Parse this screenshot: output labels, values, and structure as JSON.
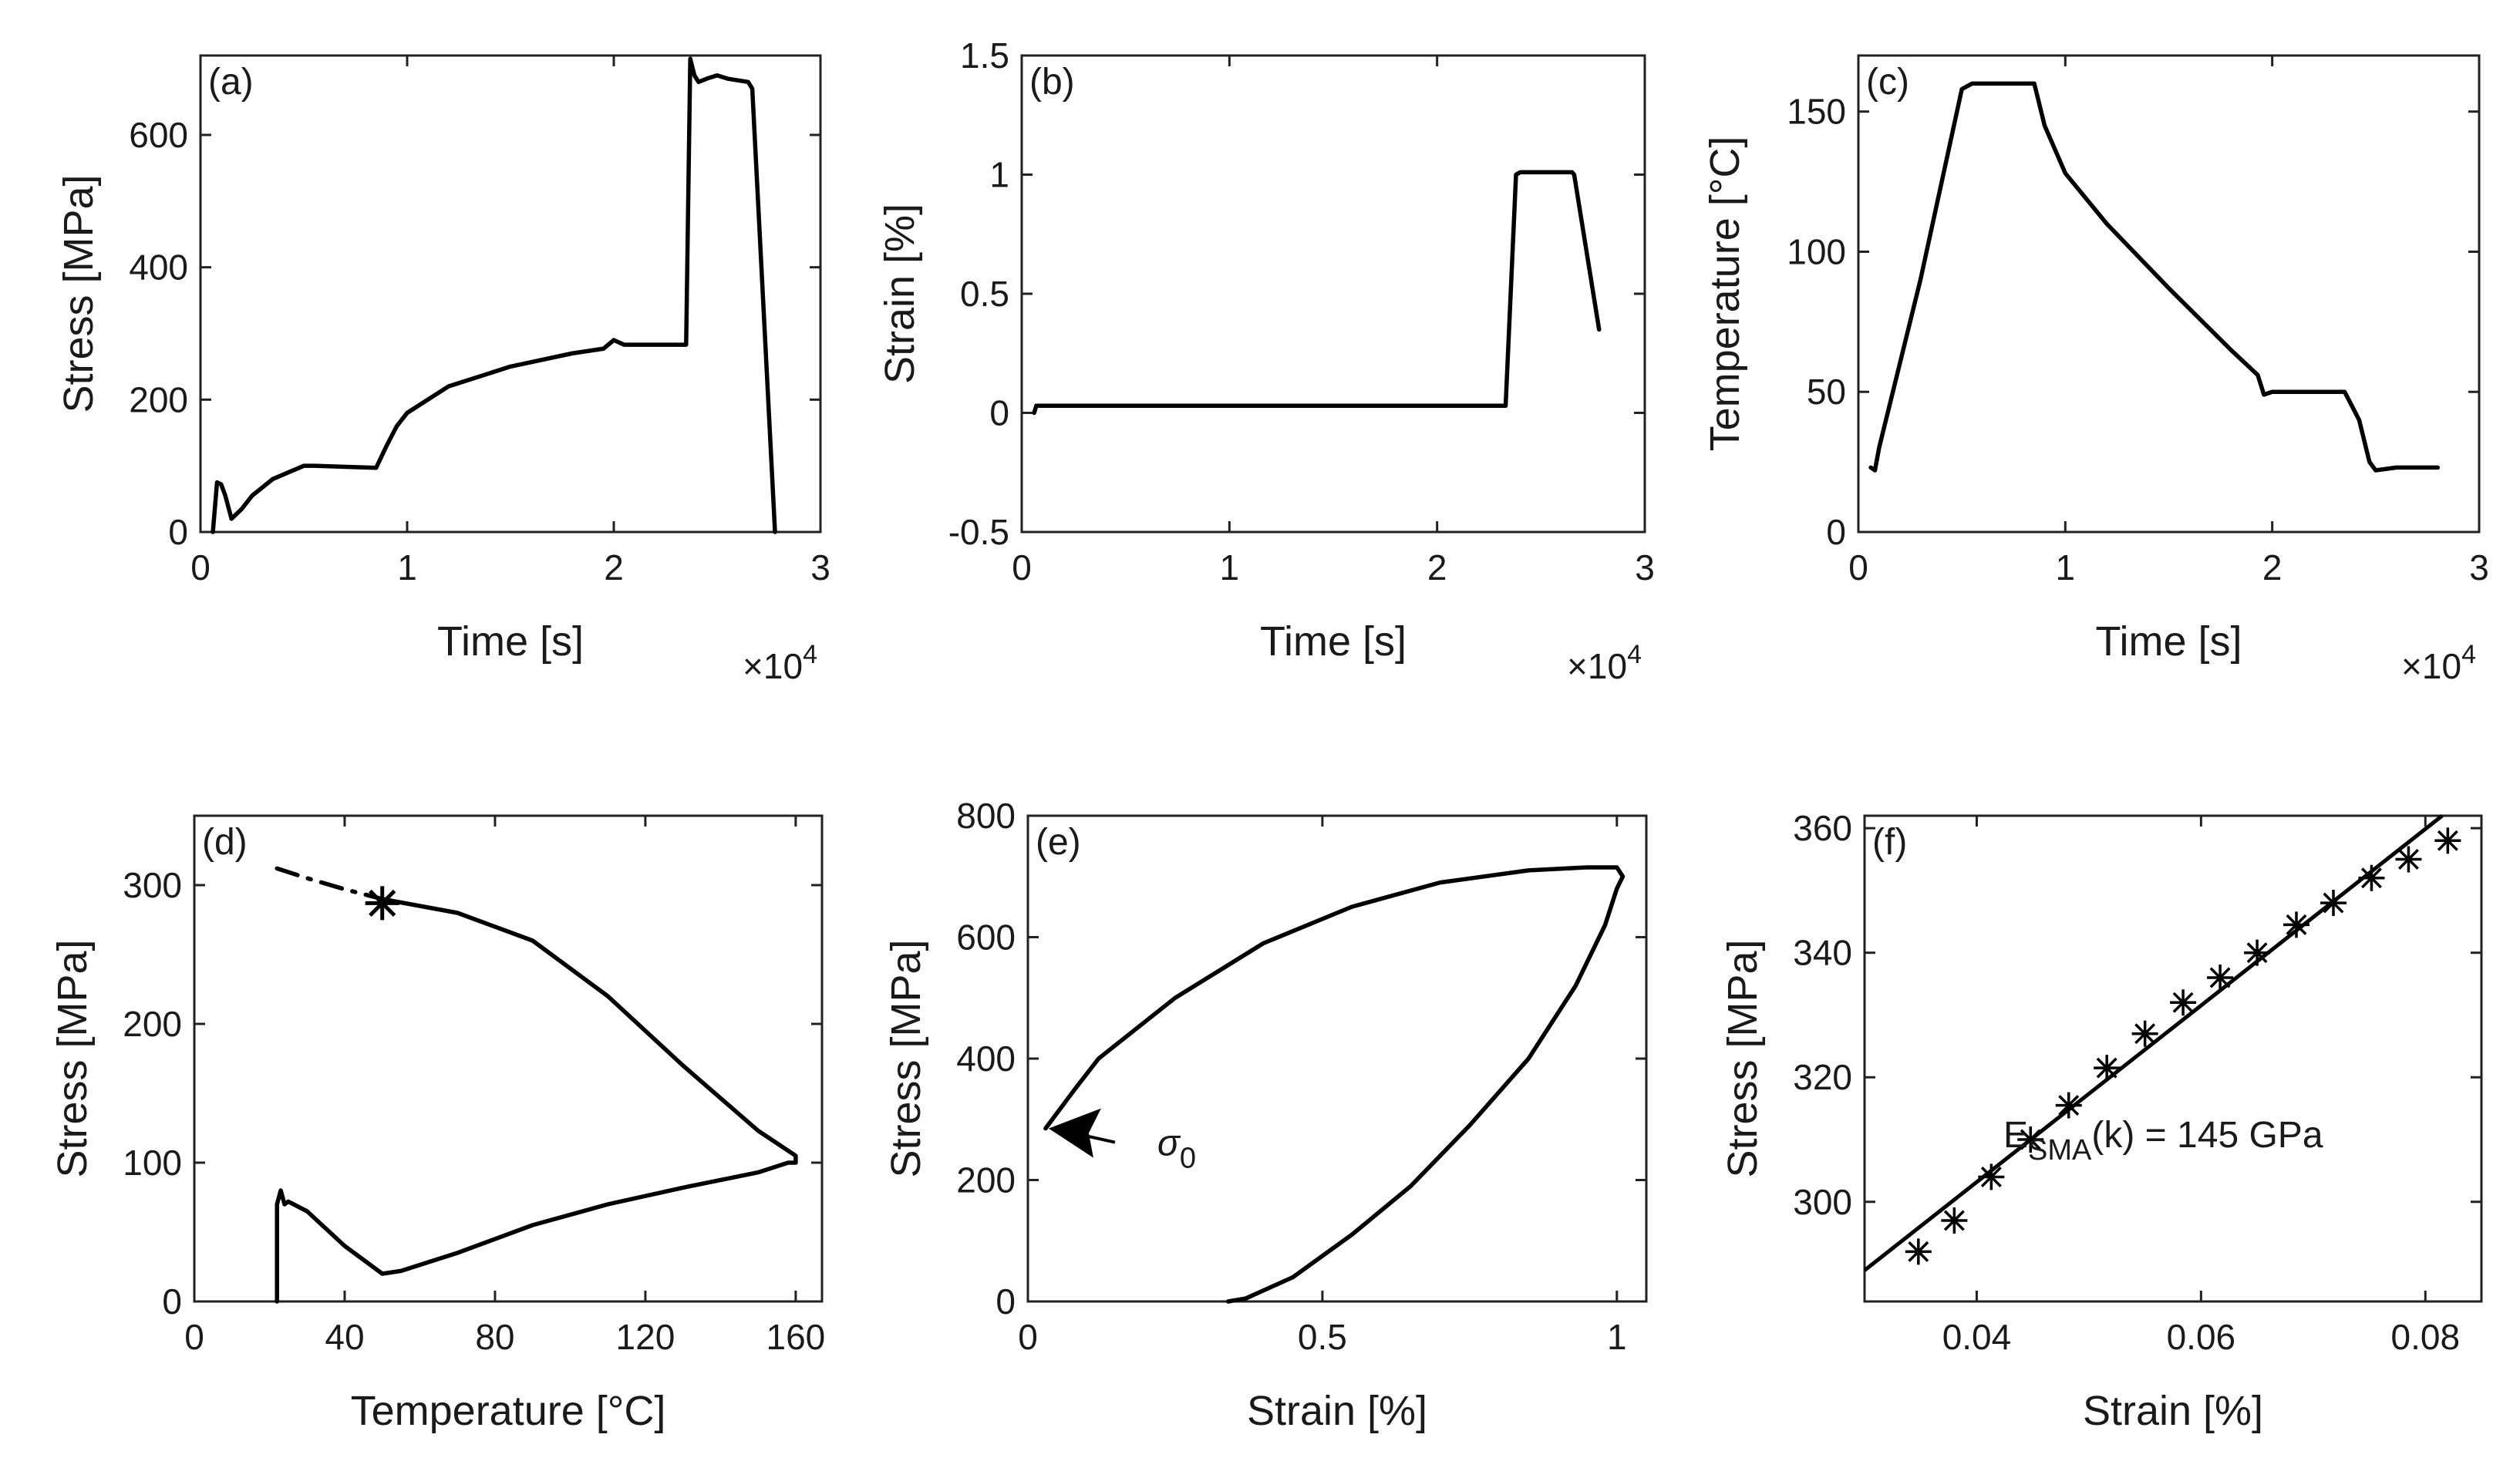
{
  "chart_data": [
    {
      "id": "a",
      "type": "line",
      "panel_label": "(a)",
      "xlabel": "Time [s]",
      "ylabel": "Stress [MPa]",
      "x_exponent_label": "×10",
      "x_exponent": "4",
      "xlim": [
        0,
        3
      ],
      "ylim": [
        0,
        720
      ],
      "xticks": [
        0,
        1,
        2,
        3
      ],
      "yticks": [
        0,
        200,
        400,
        600
      ],
      "series": [
        {
          "name": "stress",
          "x": [
            0.06,
            0.08,
            0.1,
            0.12,
            0.15,
            0.2,
            0.25,
            0.35,
            0.5,
            0.55,
            0.85,
            0.9,
            0.95,
            1.0,
            1.2,
            1.5,
            1.8,
            1.95,
            2.0,
            2.05,
            2.35,
            2.37,
            2.39,
            2.41,
            2.45,
            2.5,
            2.55,
            2.65,
            2.67,
            2.78
          ],
          "y": [
            0,
            75,
            72,
            55,
            20,
            35,
            55,
            80,
            100,
            100,
            97,
            130,
            160,
            180,
            220,
            250,
            270,
            277,
            290,
            283,
            283,
            715,
            690,
            680,
            685,
            690,
            685,
            680,
            670,
            0
          ]
        }
      ]
    },
    {
      "id": "b",
      "type": "line",
      "panel_label": "(b)",
      "xlabel": "Time [s]",
      "ylabel": "Strain [%]",
      "x_exponent_label": "×10",
      "x_exponent": "4",
      "xlim": [
        0,
        3
      ],
      "ylim": [
        -0.5,
        1.5
      ],
      "xticks": [
        0,
        1,
        2,
        3
      ],
      "yticks": [
        -0.5,
        0,
        0.5,
        1,
        1.5
      ],
      "series": [
        {
          "name": "strain",
          "x": [
            0.06,
            0.07,
            0.08,
            0.3,
            1.0,
            2.0,
            2.33,
            2.38,
            2.4,
            2.65,
            2.66,
            2.78
          ],
          "y": [
            0,
            0.03,
            0.03,
            0.03,
            0.03,
            0.03,
            0.03,
            1.0,
            1.01,
            1.01,
            1.0,
            0.35
          ]
        }
      ]
    },
    {
      "id": "c",
      "type": "line",
      "panel_label": "(c)",
      "xlabel": "Time [s]",
      "ylabel": "Temperature [°C]",
      "x_exponent_label": "×10",
      "x_exponent": "4",
      "xlim": [
        0,
        3
      ],
      "ylim": [
        0,
        170
      ],
      "xticks": [
        0,
        1,
        2,
        3
      ],
      "yticks": [
        0,
        50,
        100,
        150
      ],
      "series": [
        {
          "name": "temperature",
          "x": [
            0.06,
            0.08,
            0.1,
            0.3,
            0.5,
            0.55,
            0.85,
            0.9,
            1.0,
            1.2,
            1.5,
            1.8,
            1.93,
            1.96,
            2.0,
            2.1,
            2.35,
            2.42,
            2.47,
            2.5,
            2.6,
            2.8
          ],
          "y": [
            23,
            22,
            30,
            90,
            158,
            160,
            160,
            145,
            128,
            110,
            87,
            65,
            56,
            49,
            50,
            50,
            50,
            40,
            25,
            22,
            23,
            23
          ]
        }
      ]
    },
    {
      "id": "d",
      "type": "line",
      "panel_label": "(d)",
      "xlabel": "Temperature [°C]",
      "ylabel": "Stress [MPa]",
      "xlim": [
        0,
        167
      ],
      "ylim": [
        0,
        350
      ],
      "xticks": [
        0,
        40,
        80,
        120,
        160
      ],
      "yticks": [
        0,
        100,
        200,
        300
      ],
      "series": [
        {
          "name": "loop",
          "x": [
            22,
            22,
            22,
            23,
            24,
            25,
            30,
            40,
            50,
            55,
            70,
            90,
            110,
            130,
            150,
            158,
            160,
            160,
            150,
            130,
            110,
            90,
            70,
            50
          ],
          "y": [
            0,
            40,
            70,
            80,
            70,
            72,
            65,
            40,
            20,
            22,
            35,
            55,
            70,
            82,
            93,
            100,
            100,
            105,
            123,
            170,
            220,
            260,
            280,
            290
          ]
        },
        {
          "name": "extrapolation",
          "x": [
            22,
            30,
            40,
            50
          ],
          "y": [
            312,
            305,
            297,
            290
          ]
        }
      ],
      "marker": {
        "x": 50,
        "y": 287,
        "symbol": "*"
      }
    },
    {
      "id": "e",
      "type": "line",
      "panel_label": "(e)",
      "xlabel": "Strain [%]",
      "ylabel": "Stress [MPa]",
      "xlim": [
        0,
        1.05
      ],
      "ylim": [
        0,
        800
      ],
      "xticks": [
        0,
        0.5,
        1
      ],
      "yticks": [
        0,
        200,
        400,
        600,
        800
      ],
      "series": [
        {
          "name": "hysteresis",
          "x": [
            0.34,
            0.37,
            0.45,
            0.55,
            0.65,
            0.75,
            0.85,
            0.93,
            0.98,
            1.0,
            1.01,
            1.0,
            0.95,
            0.85,
            0.7,
            0.55,
            0.4,
            0.25,
            0.12,
            0.08,
            0.03
          ],
          "y": [
            0,
            5,
            40,
            110,
            190,
            290,
            400,
            520,
            620,
            680,
            700,
            715,
            715,
            710,
            690,
            650,
            590,
            500,
            400,
            350,
            285
          ]
        }
      ],
      "annotation": {
        "text": "σ",
        "subscript": "0",
        "x": 0.03,
        "y": 285
      }
    },
    {
      "id": "f",
      "type": "scatter",
      "panel_label": "(f)",
      "xlabel": "Strain [%]",
      "ylabel": "Stress [MPa]",
      "xlim": [
        0.03,
        0.085
      ],
      "ylim": [
        284,
        362
      ],
      "xticks": [
        0.04,
        0.06,
        0.08
      ],
      "yticks": [
        300,
        320,
        340,
        360
      ],
      "points": {
        "x": [
          0.0348,
          0.038,
          0.0413,
          0.0448,
          0.0482,
          0.0516,
          0.055,
          0.0584,
          0.0617,
          0.065,
          0.0685,
          0.0718,
          0.0752,
          0.0785,
          0.082
        ],
        "y": [
          292,
          297,
          304,
          310,
          315.5,
          321.5,
          327,
          332,
          336,
          340,
          344.5,
          348,
          352,
          355,
          358
        ]
      },
      "fit": {
        "x": [
          0.03,
          0.0815
        ],
        "y": [
          289,
          362
        ]
      },
      "annotation": {
        "prefix": "E",
        "subscript": "SMA",
        "suffix": "(k) = 145 GPa"
      }
    }
  ]
}
